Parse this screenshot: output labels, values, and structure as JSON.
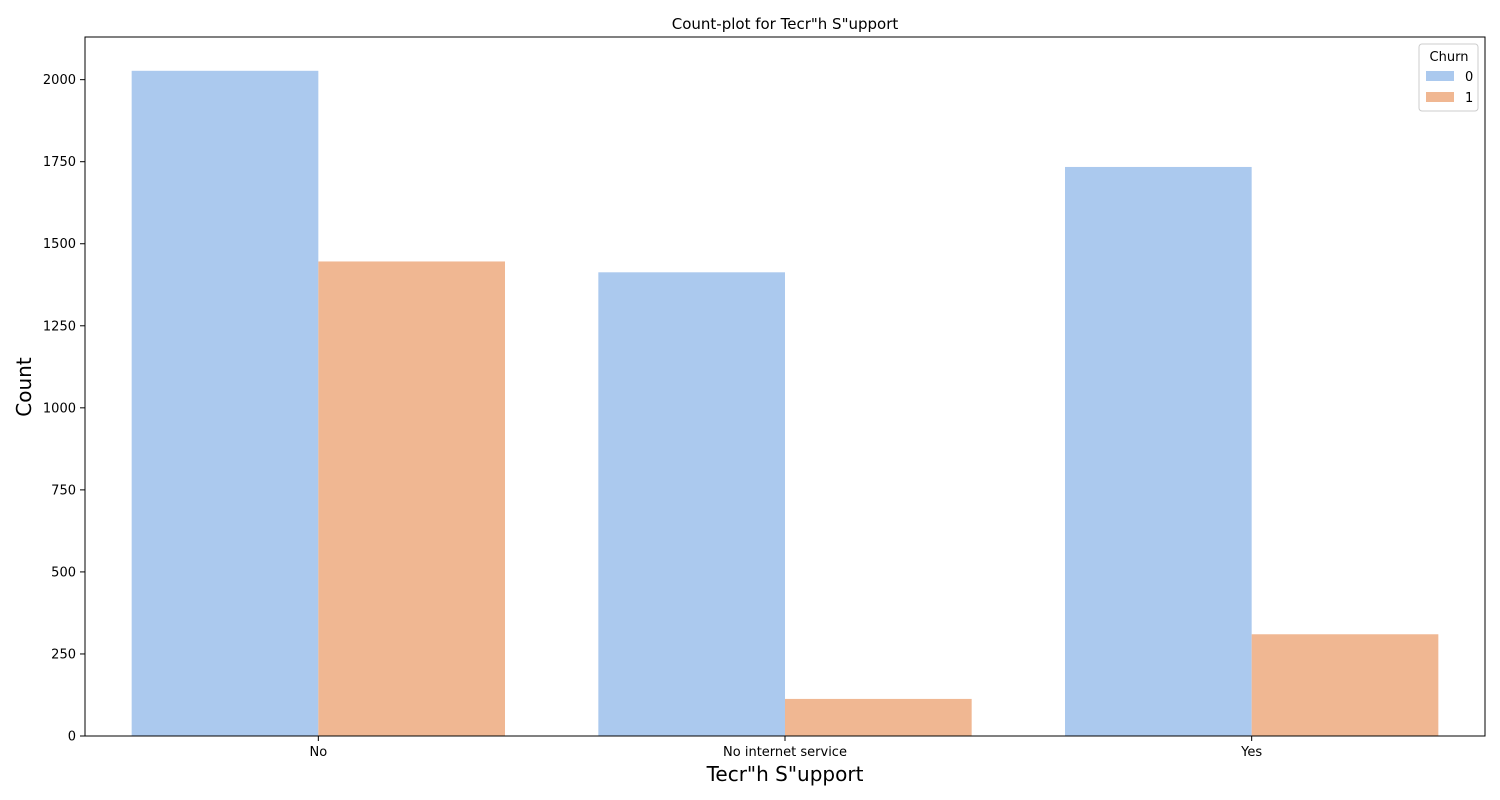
{
  "chart_data": {
    "type": "bar",
    "title": "Count-plot for Tecr\"h S\"upport",
    "xlabel": "Tecr\"h S\"upport",
    "ylabel": "Count",
    "categories": [
      "No",
      "No internet service",
      "Yes"
    ],
    "series": [
      {
        "name": "0",
        "color": "#abc9ee",
        "values": [
          2027,
          1413,
          1734
        ]
      },
      {
        "name": "1",
        "color": "#f0b792",
        "values": [
          1446,
          113,
          310
        ]
      }
    ],
    "yticks": [
      0,
      250,
      500,
      750,
      1000,
      1250,
      1500,
      1750,
      2000
    ],
    "ylim": [
      0,
      2130
    ],
    "grid": false,
    "legend": {
      "title": "Churn",
      "placement": "top-right"
    }
  }
}
